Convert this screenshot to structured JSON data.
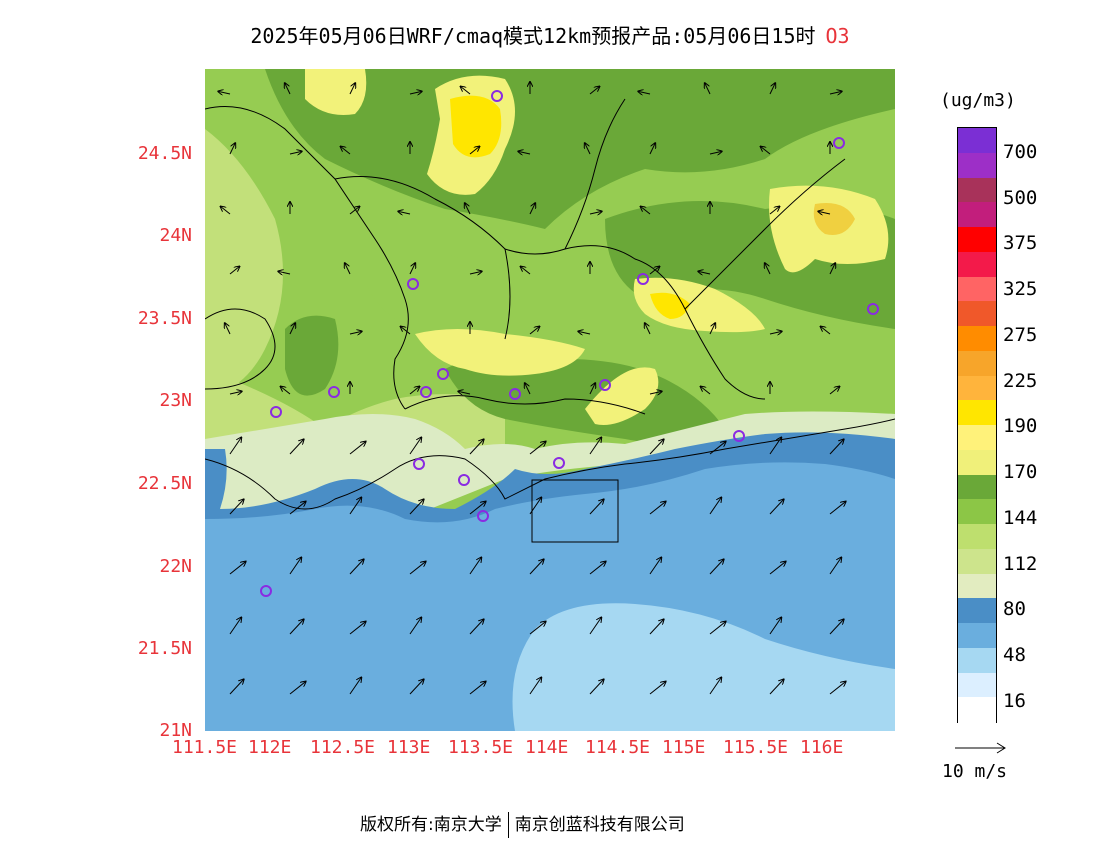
{
  "title": {
    "text": "2025年05月06日WRF/cmaq模式12km预报产品:05月06日15时",
    "species": "O3"
  },
  "map": {
    "latitude_labels": [
      "24.5N",
      "24N",
      "23.5N",
      "23N",
      "22.5N",
      "22N",
      "21.5N",
      "21N"
    ],
    "longitude_labels": [
      "111.5E",
      "112E",
      "112.5E",
      "113E",
      "113.5E",
      "114E",
      "114.5E",
      "115E",
      "115.5E",
      "116E"
    ],
    "colors": {
      "sea_dark": "#4a8ec6",
      "sea_mid": "#6aaede",
      "sea_light": "#a6d8f2",
      "land_pale": "#dcebc4",
      "land_light": "#c2e07a",
      "land_mid": "#96cc52",
      "land_dark": "#6aa838",
      "high_yellow": "#f2f27a",
      "peak_yellow": "#ffe600"
    }
  },
  "legend": {
    "units": "(ug/m3)",
    "tick_labels": [
      "700",
      "500",
      "375",
      "325",
      "275",
      "225",
      "190",
      "170",
      "144",
      "112",
      "80",
      "48",
      "16"
    ],
    "bands": [
      "#7b2fd4",
      "#9d2fc7",
      "#a8325a",
      "#c21e7c",
      "#ff0000",
      "#f31a4a",
      "#ff6464",
      "#f0582a",
      "#ff8c00",
      "#f7a52a",
      "#ffb43c",
      "#ffe600",
      "#fff27a",
      "#f0f07a",
      "#6aa838",
      "#8cc646",
      "#bedf6e",
      "#cde48c",
      "#e2ecc0",
      "#4a8ec6",
      "#6aaede",
      "#a6d8f2",
      "#dcefff",
      "#ffffff"
    ]
  },
  "wind_reference": {
    "label": "10 m/s"
  },
  "footer": {
    "copyright_prefix": "版权所有:",
    "org1": "南京大学",
    "org2": "南京创蓝科技有限公司"
  }
}
